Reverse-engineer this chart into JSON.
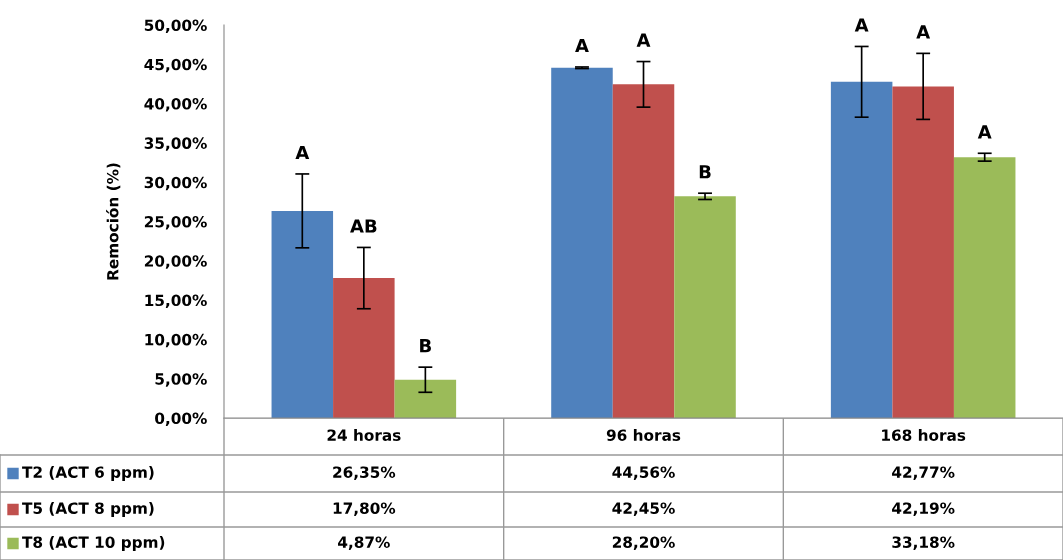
{
  "chart_data": {
    "type": "bar",
    "ylabel": "Remoción (%)",
    "categories": [
      "24 horas",
      "96 horas",
      "168 horas"
    ],
    "series": [
      {
        "name": "T2 (ACT 6 ppm)",
        "color": "#4f81bd",
        "values": [
          26.35,
          44.56,
          42.77
        ],
        "value_labels": [
          "26,35%",
          "44,56%",
          "42,77%"
        ],
        "errors": [
          4.7,
          0.1,
          4.5
        ]
      },
      {
        "name": "T5 (ACT 8 ppm)",
        "color": "#c0504d",
        "values": [
          17.8,
          42.45,
          42.19
        ],
        "value_labels": [
          "17,80%",
          "42,45%",
          "42,19%"
        ],
        "errors": [
          3.9,
          2.9,
          4.2
        ]
      },
      {
        "name": "T8 (ACT 10 ppm)",
        "color": "#9bbb59",
        "values": [
          4.87,
          28.2,
          33.18
        ],
        "value_labels": [
          "4,87%",
          "28,20%",
          "33,18%"
        ],
        "errors": [
          1.6,
          0.4,
          0.5
        ]
      }
    ],
    "ylim": [
      0,
      50
    ],
    "yticks": [
      {
        "value": 0,
        "label": "0,00%"
      },
      {
        "value": 5,
        "label": "5,00%"
      },
      {
        "value": 10,
        "label": "10,00%"
      },
      {
        "value": 15,
        "label": "15,00%"
      },
      {
        "value": 20,
        "label": "20,00%"
      },
      {
        "value": 25,
        "label": "25,00%"
      },
      {
        "value": 30,
        "label": "30,00%"
      },
      {
        "value": 35,
        "label": "35,00%"
      },
      {
        "value": 40,
        "label": "40,00%"
      },
      {
        "value": 45,
        "label": "45,00%"
      },
      {
        "value": 50,
        "label": "50,00%"
      }
    ],
    "grid": false,
    "legend": "bottom",
    "annotations": [
      "A",
      "A",
      "A",
      "AB",
      "A",
      "A",
      "B",
      "B",
      "A"
    ]
  }
}
